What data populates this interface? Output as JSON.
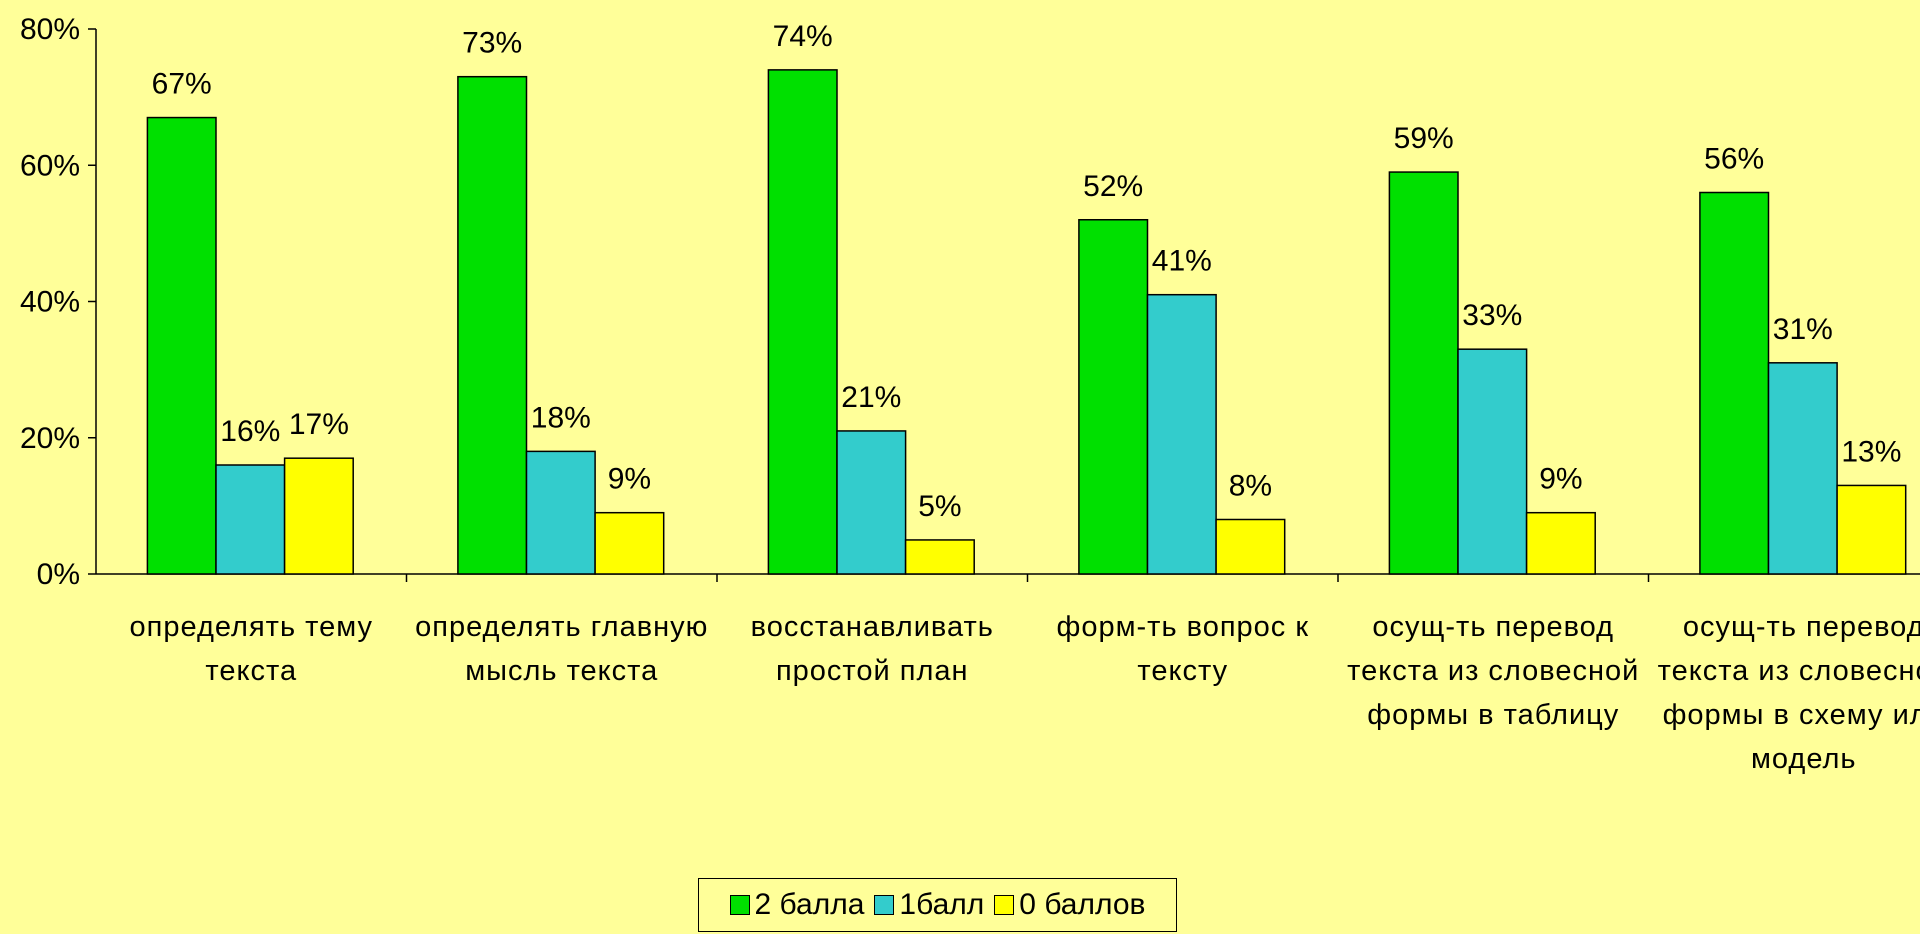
{
  "chart_data": {
    "type": "bar",
    "categories": [
      "определять тему текста",
      "определять главную мысль текста",
      "восстанавливать простой план",
      "форм-ть вопрос к тексту",
      "осущ-ть перевод текста из словесной формы в таблицу",
      "осущ-ть перевод текста из словесной формы в схему или модель"
    ],
    "series": [
      {
        "name": "2 балла",
        "color": "#00e000",
        "values": [
          67,
          73,
          74,
          52,
          59,
          56
        ],
        "value_labels": [
          "67%",
          "73%",
          "74%",
          "52%",
          "59%",
          "56%"
        ]
      },
      {
        "name": "1балл",
        "color": "#33cccc",
        "values": [
          16,
          18,
          21,
          41,
          33,
          31
        ],
        "value_labels": [
          "16%",
          "18%",
          "21%",
          "41%",
          "33%",
          "31%"
        ]
      },
      {
        "name": "0 баллов",
        "color": "#ffff00",
        "values": [
          17,
          9,
          5,
          8,
          9,
          13
        ],
        "value_labels": [
          "17%",
          "9%",
          "5%",
          "8%",
          "9%",
          "13%"
        ]
      }
    ],
    "ylim": [
      0,
      80
    ],
    "yticks": [
      {
        "value": 0,
        "label": "0%"
      },
      {
        "value": 20,
        "label": "20%"
      },
      {
        "value": 40,
        "label": "40%"
      },
      {
        "value": 60,
        "label": "60%"
      },
      {
        "value": 80,
        "label": "80%"
      }
    ],
    "grid": false,
    "legend": "bottom"
  }
}
